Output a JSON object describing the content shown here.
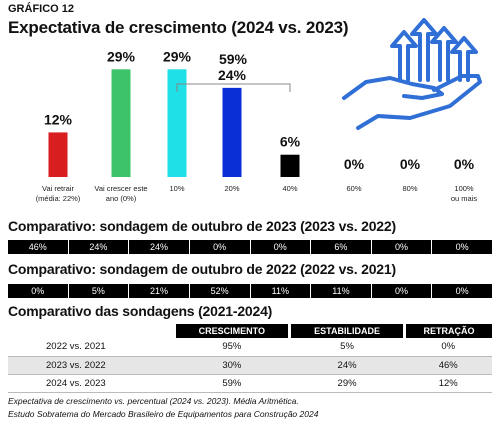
{
  "header": {
    "label": "GRÁFICO 12",
    "title": "Expectativa de crescimento (2024 vs. 2023)"
  },
  "chart_data": {
    "type": "bar",
    "categories": [
      "Vai retrair (média: 22%)",
      "Vai crescer este ano (0%)",
      "10%",
      "20%",
      "40%",
      "60%",
      "80%",
      "100% ou mais"
    ],
    "values": [
      12,
      29,
      29,
      24,
      6,
      0,
      0,
      0
    ],
    "value_labels": [
      "12%",
      "29%",
      "29%",
      "24%",
      "6%",
      "0%",
      "0%",
      "0%"
    ],
    "colors": [
      "#d81e1e",
      "#3dc46a",
      "#1ee0e6",
      "#0a2fd6",
      "#000000",
      "#000000",
      "#000000",
      "#000000"
    ],
    "group_label": "59%"
  },
  "chart_text": {
    "cat0_line1": "Vai retrair",
    "cat0_line2": "(média: 22%)",
    "cat1_line1": "Vai crescer este",
    "cat1_line2": "ano (0%)",
    "cat7_line1": "100%",
    "cat7_line2": "ou mais"
  },
  "comparisons": [
    {
      "title": "Comparativo: sondagem de outubro de 2023 (2023 vs. 2022)",
      "values": [
        "46%",
        "24%",
        "24%",
        "0%",
        "0%",
        "6%",
        "0%",
        "0%"
      ]
    },
    {
      "title": "Comparativo: sondagem de outubro de 2022 (2022 vs. 2021)",
      "values": [
        "0%",
        "5%",
        "21%",
        "52%",
        "11%",
        "11%",
        "0%",
        "0%"
      ]
    }
  ],
  "summary": {
    "title": "Comparativo das sondagens (2021-2024)",
    "headers": [
      "CRESCIMENTO",
      "ESTABILIDADE",
      "RETRAÇÃO"
    ],
    "rows": [
      [
        "2022 vs. 2021",
        "95%",
        "5%",
        "0%"
      ],
      [
        "2023 vs. 2022",
        "30%",
        "24%",
        "46%"
      ],
      [
        "2024 vs. 2023",
        "59%",
        "29%",
        "12%"
      ]
    ]
  },
  "footnote": {
    "line1": "Expectativa de crescimento vs. percentual (2024 vs. 2023). Média Aritmética.",
    "line2": "Estudo Sobratema do Mercado Brasileiro de Equipamentos para Construção 2024"
  },
  "icons": {
    "hand_growth": "hand-growth-arrows-icon",
    "icon_color": "#2f6fd6"
  }
}
